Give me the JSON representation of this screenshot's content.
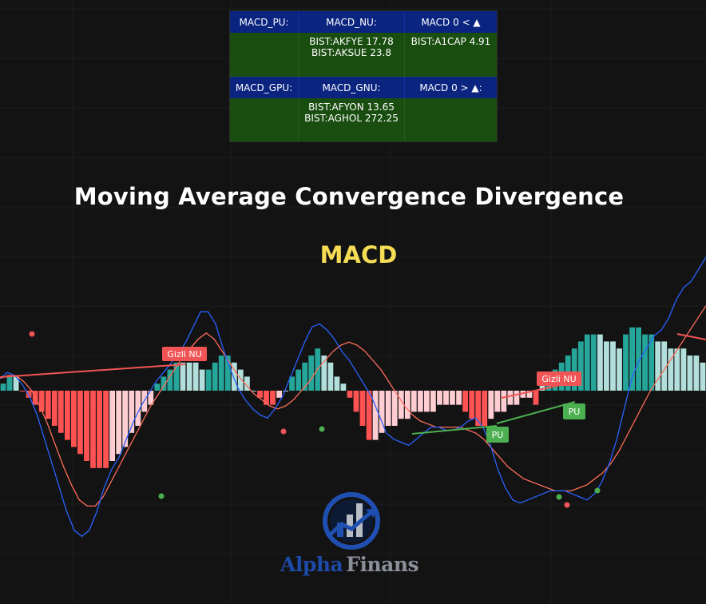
{
  "screener": {
    "headers_row1": [
      "MACD_PU:",
      "MACD_NU:",
      "MACD 0 < ▲"
    ],
    "row1": [
      [],
      [
        "BIST:AKFYE 17.78",
        "BIST:AKSUE 23.8"
      ],
      [
        "BIST:A1CAP 4.91"
      ]
    ],
    "headers_row2": [
      "MACD_GPU:",
      "MACD_GNU:",
      "MACD 0 > ▲:"
    ],
    "row2": [
      [],
      [
        "BIST:AFYON 13.65",
        "BIST:AGHOL 272.25"
      ],
      []
    ]
  },
  "title": "Moving Average Convergence Divergence",
  "subtitle": "MACD",
  "logo": {
    "name_part1": "Alpha",
    "name_part2": "Finans",
    "icon": "growth-chart-icon"
  },
  "colors": {
    "hist_pos_strong": "#26a69a",
    "hist_pos_weak": "#b2dfdb",
    "hist_neg_strong": "#ff5252",
    "hist_neg_weak": "#ffcdd2",
    "macd_line": "#2962ff",
    "signal_line": "#ff6d5a",
    "bull_marker": "#4caf50",
    "bear_marker": "#f05454",
    "divergence_bull": "#4caf50",
    "divergence_bear": "#f05454"
  },
  "chart_data": {
    "type": "bar",
    "x": [
      0,
      1,
      2,
      3,
      4,
      5,
      6,
      7,
      8,
      9,
      10,
      11,
      12,
      13,
      14,
      15,
      16,
      17,
      18,
      19,
      20,
      21,
      22,
      23,
      24,
      25,
      26,
      27,
      28,
      29,
      30,
      31,
      32,
      33,
      34,
      35,
      36,
      37,
      38,
      39,
      40,
      41,
      42,
      43,
      44,
      45,
      46,
      47,
      48,
      49,
      50,
      51,
      52,
      53,
      54,
      55,
      56,
      57,
      58,
      59,
      60,
      61,
      62,
      63,
      64,
      65,
      66,
      67,
      68,
      69,
      70,
      71,
      72,
      73,
      74,
      75,
      76,
      77,
      78,
      79,
      80,
      81,
      82,
      83,
      84,
      85,
      86,
      87,
      88,
      89,
      90,
      91,
      92,
      93,
      94,
      95,
      96,
      97,
      98,
      99,
      100,
      101,
      102,
      103,
      104,
      105,
      106,
      107,
      108,
      109
    ],
    "histogram": [
      1,
      2,
      2,
      0,
      -1,
      -2,
      -3,
      -4,
      -5,
      -6,
      -7,
      -8,
      -9,
      -10,
      -11,
      -11,
      -11,
      -10,
      -9,
      -8,
      -6,
      -5,
      -3,
      -2,
      1,
      2,
      3,
      4,
      4,
      4,
      4,
      3,
      3,
      4,
      5,
      5,
      4,
      3,
      2,
      0,
      -1,
      -2,
      -2,
      -1,
      0,
      2,
      3,
      4,
      5,
      6,
      5,
      4,
      2,
      1,
      -1,
      -3,
      -5,
      -7,
      -7,
      -6,
      -5,
      -5,
      -4,
      -4,
      -3,
      -3,
      -3,
      -3,
      -2,
      -2,
      -2,
      -2,
      -3,
      -4,
      -5,
      -5,
      -4,
      -3,
      -3,
      -2,
      -2,
      -1,
      -1,
      -2,
      1,
      2,
      3,
      4,
      5,
      6,
      7,
      8,
      8,
      8,
      7,
      7,
      6,
      8,
      9,
      9,
      8,
      8,
      7,
      7,
      6,
      6,
      6,
      5,
      5,
      4
    ],
    "histogram_colors": [
      "ps",
      "ps",
      "pw",
      "ns",
      "ns",
      "ns",
      "ns",
      "ns",
      "ns",
      "ns",
      "ns",
      "ns",
      "ns",
      "ns",
      "ns",
      "ns",
      "ns",
      "nw",
      "nw",
      "nw",
      "nw",
      "nw",
      "nw",
      "nw",
      "ps",
      "ps",
      "ps",
      "ps",
      "pw",
      "pw",
      "pw",
      "pw",
      "ps",
      "ps",
      "ps",
      "ps",
      "pw",
      "pw",
      "pw",
      "pw",
      "ns",
      "ns",
      "ns",
      "nw",
      "pw",
      "ps",
      "ps",
      "ps",
      "ps",
      "ps",
      "pw",
      "pw",
      "pw",
      "pw",
      "ns",
      "ns",
      "ns",
      "ns",
      "nw",
      "nw",
      "nw",
      "nw",
      "nw",
      "nw",
      "nw",
      "nw",
      "nw",
      "nw",
      "nw",
      "nw",
      "nw",
      "nw",
      "ns",
      "ns",
      "ns",
      "ns",
      "nw",
      "nw",
      "nw",
      "nw",
      "nw",
      "nw",
      "nw",
      "ns",
      "pw",
      "ps",
      "ps",
      "ps",
      "ps",
      "ps",
      "ps",
      "ps",
      "ps",
      "pw",
      "pw",
      "pw",
      "pw",
      "ps",
      "ps",
      "ps",
      "ps",
      "ps",
      "pw",
      "pw",
      "pw",
      "pw",
      "pw",
      "pw",
      "pw",
      "pw"
    ],
    "macd": [
      4,
      6,
      5,
      2,
      -2,
      -8,
      -16,
      -24,
      -32,
      -40,
      -46,
      -48,
      -46,
      -40,
      -32,
      -26,
      -22,
      -16,
      -10,
      -5,
      -1,
      3,
      6,
      9,
      12,
      16,
      21,
      26,
      26,
      22,
      14,
      7,
      1,
      -3,
      -6,
      -8,
      -9,
      -6,
      -2,
      4,
      10,
      16,
      21,
      22,
      20,
      17,
      13,
      10,
      6,
      2,
      -2,
      -8,
      -14,
      -16,
      -17,
      -18,
      -16,
      -14,
      -12,
      -12,
      -13,
      -13,
      -12,
      -10,
      -9,
      -12,
      -18,
      -26,
      -32,
      -36,
      -37,
      -36,
      -35,
      -34,
      -33,
      -33,
      -33,
      -34,
      -35,
      -36,
      -34,
      -30,
      -24,
      -16,
      -6,
      4,
      10,
      14,
      18,
      20,
      24,
      30,
      34,
      36,
      40,
      44
    ],
    "signal": [
      4,
      5,
      5,
      3,
      0,
      -5,
      -11,
      -18,
      -25,
      -31,
      -36,
      -38,
      -38,
      -35,
      -30,
      -25,
      -20,
      -15,
      -10,
      -5,
      -1,
      3,
      7,
      11,
      14,
      17,
      19,
      17,
      13,
      9,
      5,
      2,
      -1,
      -3,
      -5,
      -6,
      -5,
      -3,
      0,
      3,
      7,
      10,
      13,
      15,
      16,
      15,
      13,
      10,
      7,
      3,
      -1,
      -5,
      -8,
      -10,
      -11,
      -12,
      -12,
      -12,
      -12,
      -13,
      -14,
      -16,
      -19,
      -22,
      -25,
      -27,
      -29,
      -30,
      -31,
      -32,
      -33,
      -33,
      -33,
      -32,
      -31,
      -29,
      -27,
      -24,
      -20,
      -15,
      -10,
      -5,
      0,
      4,
      8,
      12,
      16,
      20,
      24,
      28
    ],
    "labels": [
      "Gizli NU",
      "Gizli NU",
      "PU",
      "PU"
    ],
    "title": "MACD",
    "xlabel": "",
    "ylabel": "",
    "grid": true,
    "ylim": [
      -60,
      60
    ]
  }
}
